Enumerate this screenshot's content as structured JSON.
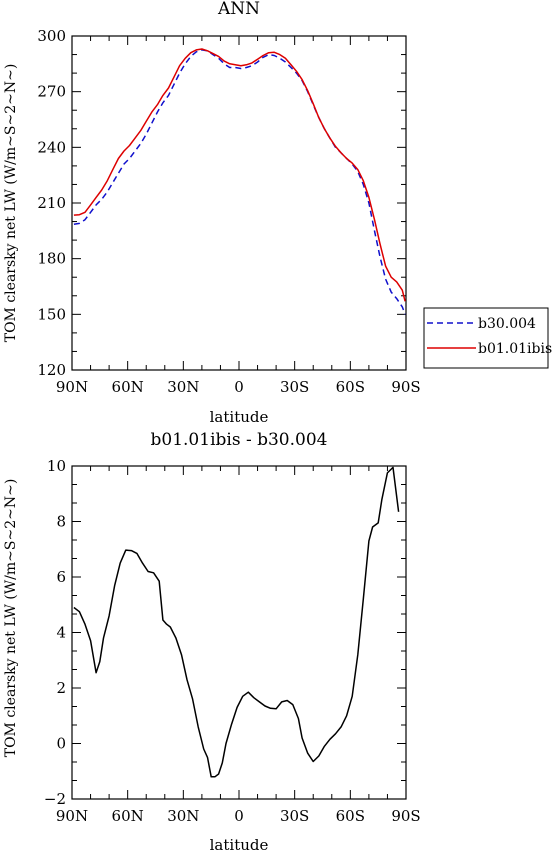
{
  "chart_data": [
    {
      "type": "line",
      "title": "ANN",
      "xlabel": "latitude",
      "ylabel": "TOM clearsky net LW (W/m~S~2~N~)",
      "xlim": [
        90,
        -90
      ],
      "ylim": [
        120,
        300
      ],
      "xticks": [
        {
          "value": 90,
          "label": "90N"
        },
        {
          "value": 60,
          "label": "60N"
        },
        {
          "value": 30,
          "label": "30N"
        },
        {
          "value": 0,
          "label": "0"
        },
        {
          "value": -30,
          "label": "30S"
        },
        {
          "value": -60,
          "label": "60S"
        },
        {
          "value": -90,
          "label": "90S"
        }
      ],
      "yticks": [
        {
          "value": 120,
          "label": "120"
        },
        {
          "value": 150,
          "label": "150"
        },
        {
          "value": 180,
          "label": "180"
        },
        {
          "value": 210,
          "label": "210"
        },
        {
          "value": 240,
          "label": "240"
        },
        {
          "value": 270,
          "label": "270"
        },
        {
          "value": 300,
          "label": "300"
        }
      ],
      "legend": [
        {
          "name": "b30.004",
          "color": "#1010cc",
          "dash": true
        },
        {
          "name": "b01.01ibis",
          "color": "#dd0000",
          "dash": false
        }
      ],
      "legend_placement": "right",
      "series": [
        {
          "name": "b30.004",
          "color": "#1010cc",
          "dash": true,
          "points": [
            [
              89,
              198.5
            ],
            [
              86,
              199
            ],
            [
              83,
              201
            ],
            [
              80,
              205
            ],
            [
              77,
              209
            ],
            [
              74,
              212
            ],
            [
              71,
              216
            ],
            [
              68,
              221
            ],
            [
              65,
              226
            ],
            [
              62,
              231
            ],
            [
              59,
              234
            ],
            [
              56,
              238
            ],
            [
              53,
              242
            ],
            [
              50,
              247
            ],
            [
              47,
              253
            ],
            [
              44,
              259
            ],
            [
              41,
              264
            ],
            [
              38,
              268
            ],
            [
              35,
              274
            ],
            [
              32,
              280
            ],
            [
              29,
              285
            ],
            [
              26,
              289
            ],
            [
              23,
              291.5
            ],
            [
              20,
              292.5
            ],
            [
              17,
              292
            ],
            [
              14,
              290
            ],
            [
              11,
              288
            ],
            [
              8,
              285
            ],
            [
              5,
              283
            ],
            [
              2,
              283
            ],
            [
              -1,
              282.5
            ],
            [
              -4,
              283
            ],
            [
              -7,
              284
            ],
            [
              -10,
              286
            ],
            [
              -13,
              288.5
            ],
            [
              -16,
              290
            ],
            [
              -19,
              289.5
            ],
            [
              -22,
              288
            ],
            [
              -25,
              286
            ],
            [
              -28,
              283
            ],
            [
              -31,
              280
            ],
            [
              -34,
              276
            ],
            [
              -37,
              270
            ],
            [
              -40,
              263
            ],
            [
              -43,
              256
            ],
            [
              -46,
              250
            ],
            [
              -49,
              245
            ],
            [
              -52,
              240
            ],
            [
              -55,
              237
            ],
            [
              -58,
              234
            ],
            [
              -61,
              231
            ],
            [
              -64,
              227
            ],
            [
              -67,
              220
            ],
            [
              -70,
              210
            ],
            [
              -73,
              195
            ],
            [
              -76,
              181
            ],
            [
              -79,
              169
            ],
            [
              -82,
              162
            ],
            [
              -85,
              158.5
            ],
            [
              -88,
              154
            ],
            [
              -89.5,
              150
            ]
          ]
        },
        {
          "name": "b01.01ibis",
          "color": "#dd0000",
          "dash": false,
          "points": [
            [
              89,
              203.5
            ],
            [
              86,
              203.7
            ],
            [
              83,
              205
            ],
            [
              80,
              209
            ],
            [
              77,
              213
            ],
            [
              74,
              217
            ],
            [
              71,
              222
            ],
            [
              68,
              228
            ],
            [
              65,
              234
            ],
            [
              62,
              238
            ],
            [
              59,
              241
            ],
            [
              56,
              245
            ],
            [
              53,
              249
            ],
            [
              50,
              254
            ],
            [
              47,
              259
            ],
            [
              44,
              263
            ],
            [
              41,
              268
            ],
            [
              38,
              272
            ],
            [
              35,
              278
            ],
            [
              32,
              284
            ],
            [
              29,
              288
            ],
            [
              26,
              291
            ],
            [
              23,
              292.5
            ],
            [
              20,
              293
            ],
            [
              17,
              292
            ],
            [
              14,
              290.5
            ],
            [
              11,
              289
            ],
            [
              8,
              286.5
            ],
            [
              5,
              285
            ],
            [
              2,
              284.5
            ],
            [
              -1,
              284
            ],
            [
              -4,
              284.5
            ],
            [
              -7,
              285.5
            ],
            [
              -10,
              287.5
            ],
            [
              -13,
              289.5
            ],
            [
              -16,
              291
            ],
            [
              -19,
              291.2
            ],
            [
              -22,
              290
            ],
            [
              -25,
              288
            ],
            [
              -28,
              284.5
            ],
            [
              -31,
              281
            ],
            [
              -34,
              276.5
            ],
            [
              -37,
              270.5
            ],
            [
              -40,
              263.5
            ],
            [
              -43,
              256
            ],
            [
              -46,
              250
            ],
            [
              -49,
              245
            ],
            [
              -52,
              240.5
            ],
            [
              -55,
              237
            ],
            [
              -58,
              234
            ],
            [
              -61,
              231.5
            ],
            [
              -64,
              228
            ],
            [
              -67,
              222
            ],
            [
              -70,
              213
            ],
            [
              -73,
              201
            ],
            [
              -76,
              188
            ],
            [
              -79,
              176
            ],
            [
              -82,
              170
            ],
            [
              -85,
              167.5
            ],
            [
              -88,
              163
            ],
            [
              -89.5,
              157
            ]
          ]
        }
      ]
    },
    {
      "type": "line",
      "title": "b01.01ibis - b30.004",
      "xlabel": "latitude",
      "ylabel": "TOM clearsky net LW (W/m~S~2~N~)",
      "xlim": [
        90,
        -90
      ],
      "ylim": [
        -2,
        10
      ],
      "xticks": [
        {
          "value": 90,
          "label": "90N"
        },
        {
          "value": 60,
          "label": "60N"
        },
        {
          "value": 30,
          "label": "30N"
        },
        {
          "value": 0,
          "label": "0"
        },
        {
          "value": -30,
          "label": "30S"
        },
        {
          "value": -60,
          "label": "60S"
        },
        {
          "value": -90,
          "label": "90S"
        }
      ],
      "yticks": [
        {
          "value": -2,
          "label": "−2"
        },
        {
          "value": 0,
          "label": "0"
        },
        {
          "value": 2,
          "label": "2"
        },
        {
          "value": 4,
          "label": "4"
        },
        {
          "value": 6,
          "label": "6"
        },
        {
          "value": 8,
          "label": "8"
        },
        {
          "value": 10,
          "label": "10"
        }
      ],
      "series": [
        {
          "name": "",
          "color": "#000000",
          "dash": false,
          "points": [
            [
              89,
              4.9
            ],
            [
              86,
              4.75
            ],
            [
              83,
              4.3
            ],
            [
              80,
              3.7
            ],
            [
              77,
              2.55
            ],
            [
              75,
              2.95
            ],
            [
              73,
              3.8
            ],
            [
              70,
              4.6
            ],
            [
              67,
              5.7
            ],
            [
              64,
              6.5
            ],
            [
              61,
              6.97
            ],
            [
              58,
              6.95
            ],
            [
              55,
              6.85
            ],
            [
              52,
              6.5
            ],
            [
              49,
              6.2
            ],
            [
              46,
              6.15
            ],
            [
              43,
              5.85
            ],
            [
              41,
              4.45
            ],
            [
              39,
              4.3
            ],
            [
              37,
              4.2
            ],
            [
              34,
              3.8
            ],
            [
              31,
              3.2
            ],
            [
              28,
              2.3
            ],
            [
              25,
              1.6
            ],
            [
              22,
              0.6
            ],
            [
              19,
              -0.2
            ],
            [
              17,
              -0.5
            ],
            [
              15,
              -1.2
            ],
            [
              13,
              -1.2
            ],
            [
              11,
              -1.1
            ],
            [
              9,
              -0.7
            ],
            [
              7,
              0.0
            ],
            [
              4,
              0.7
            ],
            [
              1,
              1.3
            ],
            [
              -2,
              1.7
            ],
            [
              -5,
              1.85
            ],
            [
              -8,
              1.65
            ],
            [
              -11,
              1.5
            ],
            [
              -14,
              1.35
            ],
            [
              -17,
              1.27
            ],
            [
              -20,
              1.25
            ],
            [
              -23,
              1.5
            ],
            [
              -26,
              1.55
            ],
            [
              -29,
              1.4
            ],
            [
              -32,
              0.9
            ],
            [
              -34,
              0.2
            ],
            [
              -37,
              -0.35
            ],
            [
              -40,
              -0.65
            ],
            [
              -43,
              -0.45
            ],
            [
              -46,
              -0.1
            ],
            [
              -49,
              0.15
            ],
            [
              -52,
              0.35
            ],
            [
              -55,
              0.6
            ],
            [
              -58,
              1.0
            ],
            [
              -61,
              1.7
            ],
            [
              -64,
              3.2
            ],
            [
              -67,
              5.2
            ],
            [
              -70,
              7.3
            ],
            [
              -72,
              7.8
            ],
            [
              -75,
              7.95
            ],
            [
              -77,
              8.8
            ],
            [
              -80,
              9.75
            ],
            [
              -83,
              9.95
            ],
            [
              -86,
              8.35
            ]
          ]
        }
      ]
    }
  ]
}
